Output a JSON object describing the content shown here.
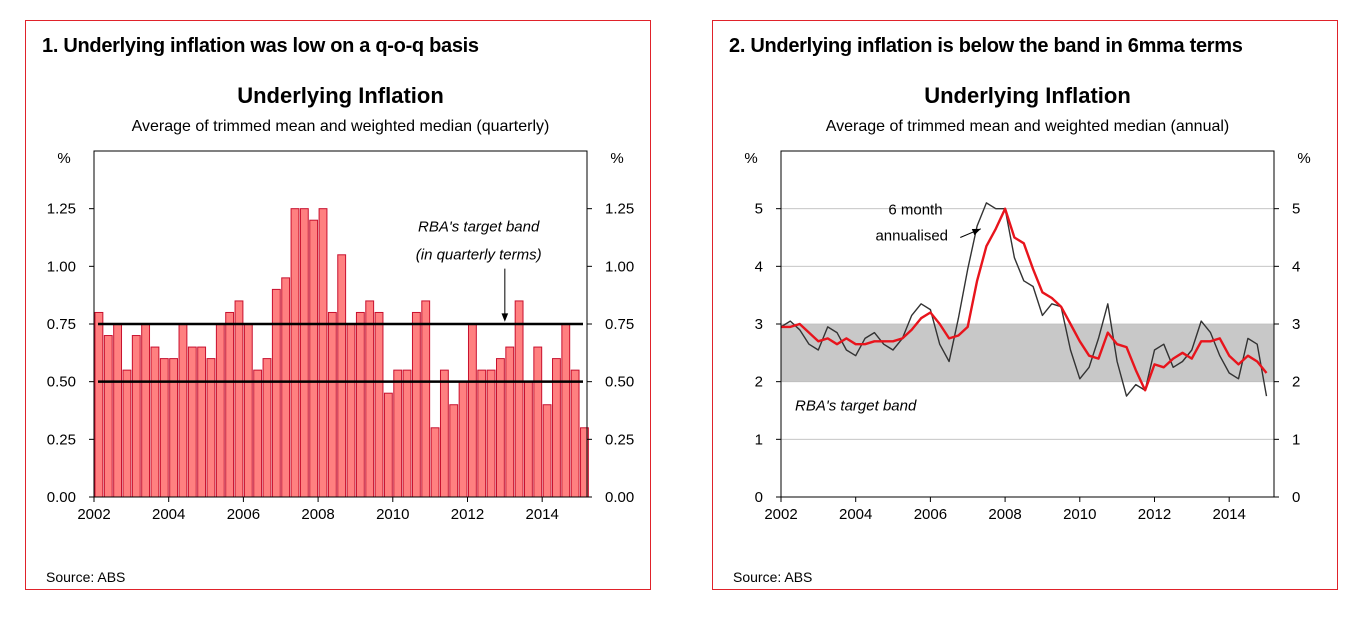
{
  "panels": [
    {
      "heading": "1. Underlying inflation was low on a q-o-q basis",
      "source": "Source: ABS"
    },
    {
      "heading": "2. Underlying inflation is below the band in 6mma terms",
      "source": "Source: ABS"
    }
  ],
  "chart_data": [
    {
      "type": "bar",
      "title": "Underlying Inflation",
      "subtitle": "Average of trimmed mean and weighted median (quarterly)",
      "ylabel": "%",
      "ylabel_right": "%",
      "ylim": [
        0,
        1.5
      ],
      "yticks": [
        0,
        0.25,
        0.5,
        0.75,
        1.0,
        1.25
      ],
      "ytick_labels": [
        "0.00",
        "0.25",
        "0.50",
        "0.75",
        "1.00",
        "1.25"
      ],
      "xlim": [
        2002,
        2015.2
      ],
      "xticks": [
        2002,
        2004,
        2006,
        2008,
        2010,
        2012,
        2014
      ],
      "xtick_labels": [
        "2002",
        "2004",
        "2006",
        "2008",
        "2010",
        "2012",
        "2014"
      ],
      "bar_color": "#ff8080",
      "bar_edge_color": "#c8102e",
      "grid": false,
      "series": [
        {
          "x": [
            2002.0,
            2002.25,
            2002.5,
            2002.75,
            2003.0,
            2003.25,
            2003.5,
            2003.75,
            2004.0,
            2004.25,
            2004.5,
            2004.75,
            2005.0,
            2005.25,
            2005.5,
            2005.75,
            2006.0,
            2006.25,
            2006.5,
            2006.75,
            2007.0,
            2007.25,
            2007.5,
            2007.75,
            2008.0,
            2008.25,
            2008.5,
            2008.75,
            2009.0,
            2009.25,
            2009.5,
            2009.75,
            2010.0,
            2010.25,
            2010.5,
            2010.75,
            2011.0,
            2011.25,
            2011.5,
            2011.75,
            2012.0,
            2012.25,
            2012.5,
            2012.75,
            2013.0,
            2013.25,
            2013.5,
            2013.75,
            2014.0,
            2014.25,
            2014.5,
            2014.75,
            2015.0
          ],
          "values": [
            0.8,
            0.7,
            0.75,
            0.55,
            0.7,
            0.75,
            0.65,
            0.6,
            0.6,
            0.75,
            0.65,
            0.65,
            0.6,
            0.75,
            0.8,
            0.85,
            0.75,
            0.55,
            0.6,
            0.9,
            0.95,
            1.25,
            1.25,
            1.2,
            1.25,
            0.8,
            1.05,
            0.75,
            0.8,
            0.85,
            0.8,
            0.45,
            0.55,
            0.55,
            0.8,
            0.85,
            0.3,
            0.55,
            0.4,
            0.5,
            0.75,
            0.55,
            0.55,
            0.6,
            0.65,
            0.85,
            0.5,
            0.65,
            0.4,
            0.6,
            0.75,
            0.55,
            0.3
          ]
        }
      ],
      "reference_lines": [
        {
          "y": 0.5,
          "color": "#000000"
        },
        {
          "y": 0.75,
          "color": "#000000"
        }
      ],
      "annotations": [
        {
          "text": "RBA's target band",
          "x": 2012.3,
          "y": 1.15
        },
        {
          "text": "(in quarterly terms)",
          "x": 2012.3,
          "y": 1.03
        },
        {
          "arrow_from": [
            2013.0,
            0.99
          ],
          "arrow_to": [
            2013.0,
            0.76
          ]
        }
      ]
    },
    {
      "type": "line",
      "title": "Underlying Inflation",
      "subtitle": "Average of trimmed mean and weighted median (annual)",
      "ylabel": "%",
      "ylabel_right": "%",
      "ylim": [
        0,
        6
      ],
      "yticks": [
        0,
        1,
        2,
        3,
        4,
        5
      ],
      "ytick_labels": [
        "0",
        "1",
        "2",
        "3",
        "4",
        "5"
      ],
      "xlim": [
        2002,
        2015.2
      ],
      "xticks": [
        2002,
        2004,
        2006,
        2008,
        2010,
        2012,
        2014
      ],
      "xtick_labels": [
        "2002",
        "2004",
        "2006",
        "2008",
        "2010",
        "2012",
        "2014"
      ],
      "grid": true,
      "band": {
        "y0": 2,
        "y1": 3,
        "color": "#c8c8c8",
        "label": "RBA's target band"
      },
      "series": [
        {
          "name": "6 month annualised",
          "color": "#333333",
          "x": [
            2002.0,
            2002.25,
            2002.5,
            2002.75,
            2003.0,
            2003.25,
            2003.5,
            2003.75,
            2004.0,
            2004.25,
            2004.5,
            2004.75,
            2005.0,
            2005.25,
            2005.5,
            2005.75,
            2006.0,
            2006.25,
            2006.5,
            2006.75,
            2007.0,
            2007.25,
            2007.5,
            2007.75,
            2008.0,
            2008.25,
            2008.5,
            2008.75,
            2009.0,
            2009.25,
            2009.5,
            2009.75,
            2010.0,
            2010.25,
            2010.5,
            2010.75,
            2011.0,
            2011.25,
            2011.5,
            2011.75,
            2012.0,
            2012.25,
            2012.5,
            2012.75,
            2013.0,
            2013.25,
            2013.5,
            2013.75,
            2014.0,
            2014.25,
            2014.5,
            2014.75,
            2015.0
          ],
          "values": [
            2.95,
            3.05,
            2.9,
            2.65,
            2.55,
            2.95,
            2.85,
            2.55,
            2.45,
            2.75,
            2.85,
            2.65,
            2.55,
            2.75,
            3.15,
            3.35,
            3.25,
            2.65,
            2.35,
            3.1,
            3.95,
            4.7,
            5.1,
            5.0,
            5.0,
            4.15,
            3.75,
            3.65,
            3.15,
            3.35,
            3.3,
            2.55,
            2.05,
            2.25,
            2.75,
            3.35,
            2.35,
            1.75,
            1.95,
            1.85,
            2.55,
            2.65,
            2.25,
            2.35,
            2.55,
            3.05,
            2.85,
            2.45,
            2.15,
            2.05,
            2.75,
            2.65,
            1.75
          ]
        },
        {
          "name": "",
          "color": "#e8141c",
          "x": [
            2002.0,
            2002.25,
            2002.5,
            2002.75,
            2003.0,
            2003.25,
            2003.5,
            2003.75,
            2004.0,
            2004.25,
            2004.5,
            2004.75,
            2005.0,
            2005.25,
            2005.5,
            2005.75,
            2006.0,
            2006.25,
            2006.5,
            2006.75,
            2007.0,
            2007.25,
            2007.5,
            2007.75,
            2008.0,
            2008.25,
            2008.5,
            2008.75,
            2009.0,
            2009.25,
            2009.5,
            2009.75,
            2010.0,
            2010.25,
            2010.5,
            2010.75,
            2011.0,
            2011.25,
            2011.5,
            2011.75,
            2012.0,
            2012.25,
            2012.5,
            2012.75,
            2013.0,
            2013.25,
            2013.5,
            2013.75,
            2014.0,
            2014.25,
            2014.5,
            2014.75,
            2015.0
          ],
          "values": [
            2.95,
            2.95,
            3.0,
            2.85,
            2.7,
            2.75,
            2.65,
            2.75,
            2.65,
            2.65,
            2.7,
            2.7,
            2.7,
            2.75,
            2.9,
            3.1,
            3.2,
            3.0,
            2.75,
            2.8,
            2.95,
            3.75,
            4.35,
            4.65,
            5.0,
            4.5,
            4.4,
            3.95,
            3.55,
            3.45,
            3.3,
            3.0,
            2.7,
            2.45,
            2.4,
            2.85,
            2.65,
            2.6,
            2.2,
            1.85,
            2.3,
            2.25,
            2.4,
            2.5,
            2.4,
            2.7,
            2.7,
            2.75,
            2.45,
            2.3,
            2.45,
            2.35,
            2.15
          ]
        }
      ],
      "annotations": [
        {
          "text": "6 month",
          "x": 2005.6,
          "y": 4.9
        },
        {
          "text": "annualised",
          "x": 2005.5,
          "y": 4.45
        },
        {
          "arrow_from": [
            2006.8,
            4.5
          ],
          "arrow_to": [
            2007.35,
            4.65
          ]
        },
        {
          "text": "RBA's target band",
          "x": 2004.0,
          "y": 1.5
        }
      ]
    }
  ]
}
